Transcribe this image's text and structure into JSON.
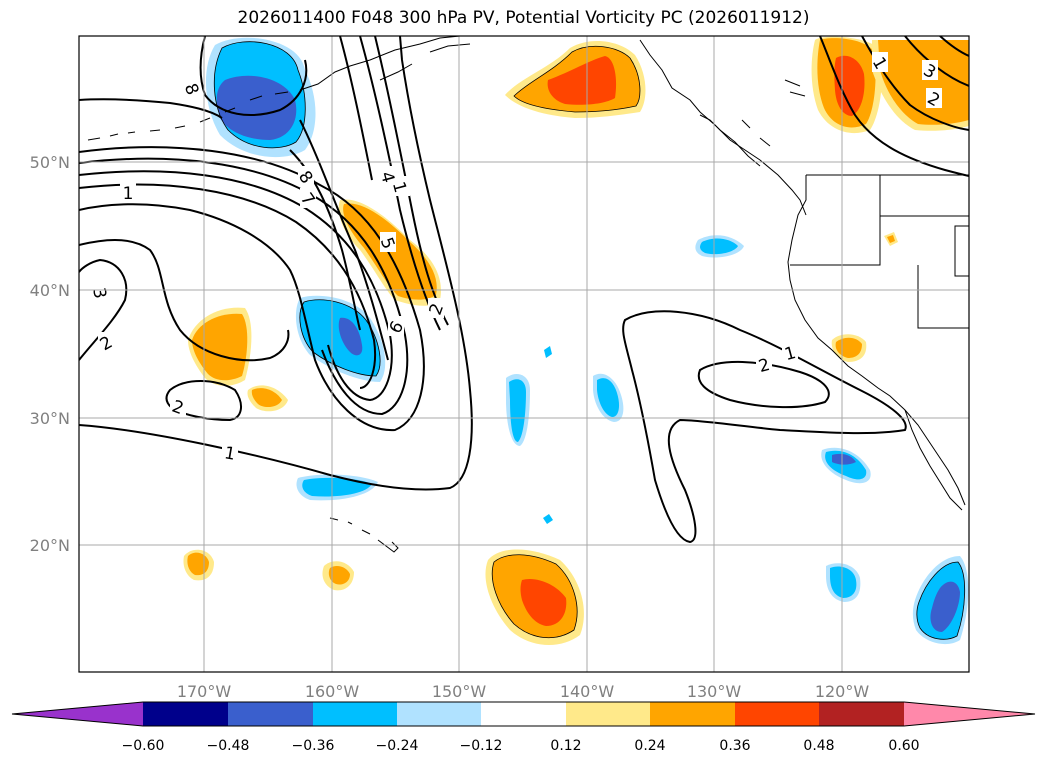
{
  "title": "2026011400 F048 300 hPa PV, Potential Vorticity PC (2026011912)",
  "lat_labels": [
    "50°N",
    "40°N",
    "30°N",
    "20°N"
  ],
  "lon_labels": [
    "170°W",
    "160°W",
    "150°W",
    "140°W",
    "130°W",
    "120°W"
  ],
  "colorbar": {
    "ticks": [
      "−0.60",
      "−0.48",
      "−0.36",
      "−0.24",
      "−0.12",
      "0.12",
      "0.24",
      "0.36",
      "0.48",
      "0.60"
    ],
    "colors": [
      "#9932cc",
      "#00008b",
      "#3a5fcd",
      "#00bfff",
      "#b0e2ff",
      "#ffffff",
      "#ffe98a",
      "#ffa500",
      "#ff4500",
      "#b22222",
      "#ff88aa"
    ]
  },
  "contour_labels": [
    "8",
    "1",
    "2",
    "3",
    "4",
    "5",
    "6",
    "7",
    "8",
    "2",
    "1",
    "2",
    "1",
    "2",
    "1",
    "2",
    "3",
    "1"
  ],
  "fill_colors": {
    "pos_light": "#ffe98a",
    "pos_mid": "#ffa500",
    "pos_strong": "#ff4500",
    "neg_light": "#b0e2ff",
    "neg_mid": "#00bfff",
    "neg_strong": "#3a5fcd"
  }
}
